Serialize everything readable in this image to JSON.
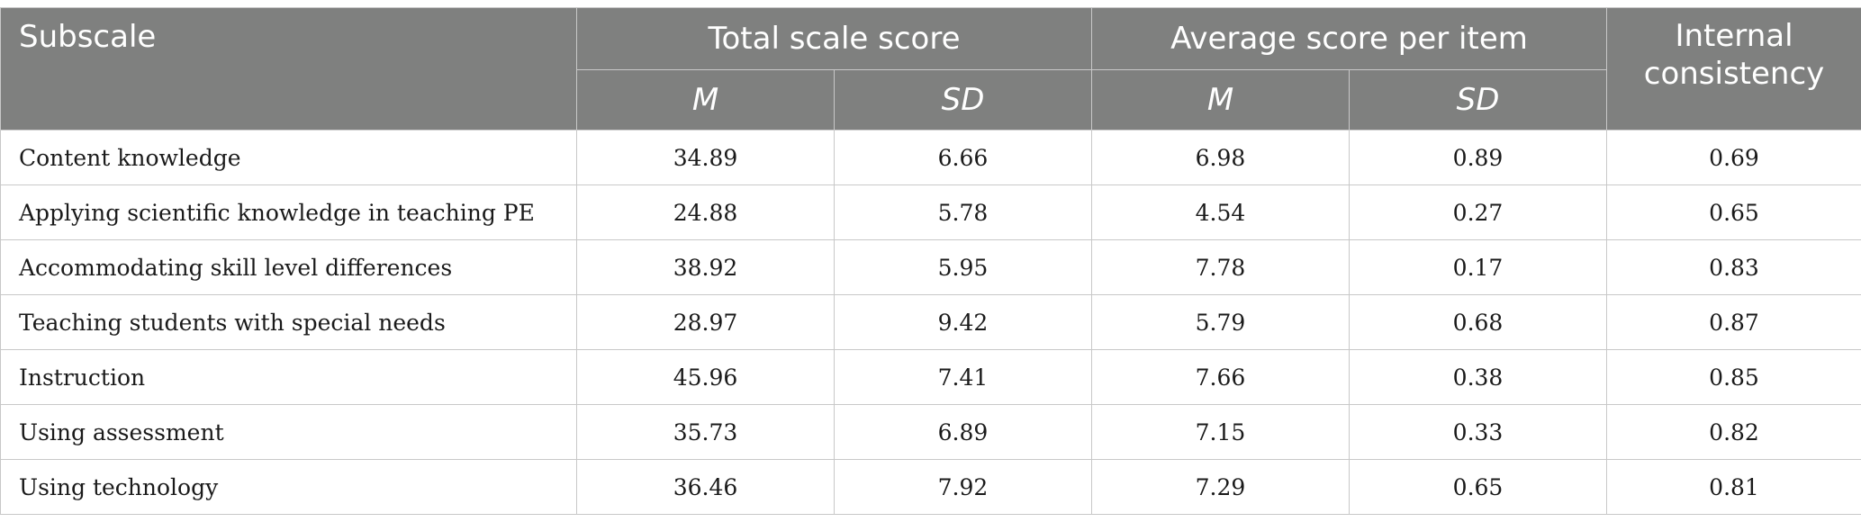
{
  "header": {
    "subscale": "Subscale",
    "total_scale_score": "Total scale score",
    "average_score_per_item": "Average score per item",
    "internal_consistency": "Internal consistency",
    "m": "M",
    "sd": "SD"
  },
  "rows": [
    {
      "subscale": "Content knowledge",
      "total_m": "34.89",
      "total_sd": "6.66",
      "avg_m": "6.98",
      "avg_sd": "0.89",
      "internal": "0.69"
    },
    {
      "subscale": "Applying scientific knowledge in teaching PE",
      "total_m": "24.88",
      "total_sd": "5.78",
      "avg_m": "4.54",
      "avg_sd": "0.27",
      "internal": "0.65"
    },
    {
      "subscale": "Accommodating skill level differences",
      "total_m": "38.92",
      "total_sd": "5.95",
      "avg_m": "7.78",
      "avg_sd": "0.17",
      "internal": "0.83"
    },
    {
      "subscale": "Teaching students with special needs",
      "total_m": "28.97",
      "total_sd": "9.42",
      "avg_m": "5.79",
      "avg_sd": "0.68",
      "internal": "0.87"
    },
    {
      "subscale": "Instruction",
      "total_m": "45.96",
      "total_sd": "7.41",
      "avg_m": "7.66",
      "avg_sd": "0.38",
      "internal": "0.85"
    },
    {
      "subscale": "Using assessment",
      "total_m": "35.73",
      "total_sd": "6.89",
      "avg_m": "7.15",
      "avg_sd": "0.33",
      "internal": "0.82"
    },
    {
      "subscale": "Using technology",
      "total_m": "36.46",
      "total_sd": "7.92",
      "avg_m": "7.29",
      "avg_sd": "0.65",
      "internal": "0.81"
    }
  ]
}
